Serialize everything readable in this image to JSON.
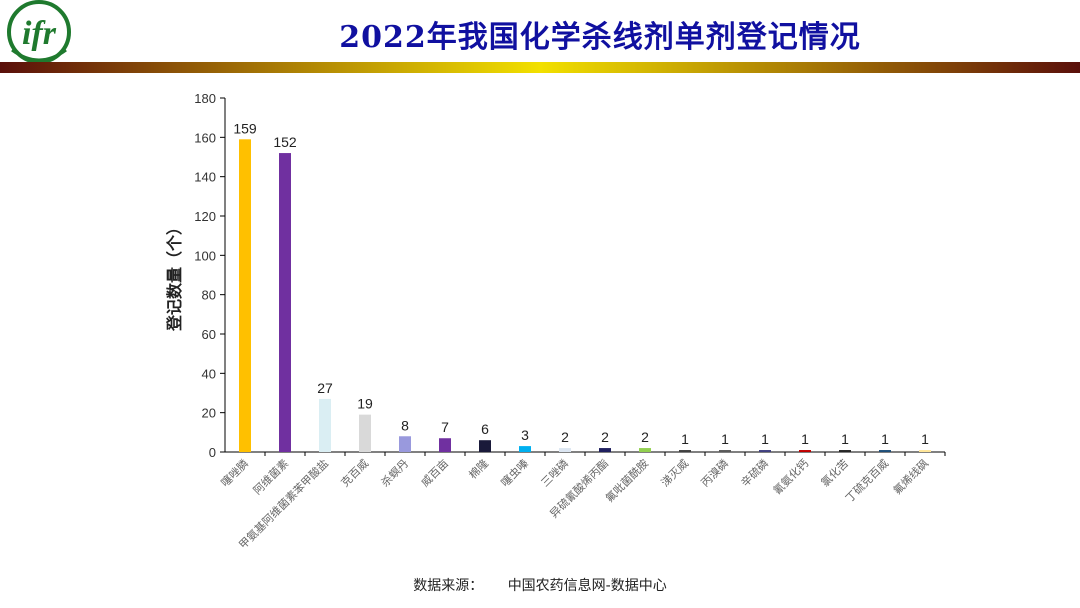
{
  "header": {
    "title": "2022年我国化学杀线剂单剂登记情况",
    "logo_text": "ifr"
  },
  "colors": {
    "title": "#1010a0",
    "logo_green": "#1f7a2e",
    "bar_dark": "#5a0f0a",
    "bar_light": "#f2c400"
  },
  "chart_data": {
    "type": "bar",
    "title": "",
    "xlabel": "",
    "ylabel": "登记数量（个）",
    "ylim": [
      0,
      180
    ],
    "yticks": [
      0,
      20,
      40,
      60,
      80,
      100,
      120,
      140,
      160,
      180
    ],
    "categories": [
      "噻唑膦",
      "阿维菌素",
      "甲氨基阿维菌素苯甲酸盐",
      "克百威",
      "杀螟丹",
      "威百亩",
      "棉隆",
      "噻虫嗪",
      "三唑磷",
      "异硫氰酸烯丙酯",
      "氟吡菌酰胺",
      "涕灭威",
      "丙溴磷",
      "辛硫磷",
      "氰氨化钙",
      "氯化苦",
      "丁硫克百威",
      "氟烯线砜"
    ],
    "values": [
      159,
      152,
      27,
      19,
      8,
      7,
      6,
      3,
      2,
      2,
      2,
      1,
      1,
      1,
      1,
      1,
      1,
      1
    ],
    "bar_colors": [
      "#ffc000",
      "#7030a0",
      "#daeef3",
      "#d9d9d9",
      "#9999dd",
      "#7030a0",
      "#1a1a3a",
      "#00b0f0",
      "#dce6f2",
      "#1f1f5f",
      "#92d050",
      "#404040",
      "#595959",
      "#404080",
      "#c00000",
      "#262626",
      "#1f4e79",
      "#ffe699"
    ]
  },
  "footer": {
    "source_label": "数据来源：",
    "source_value": "中国农药信息网-数据中心"
  }
}
